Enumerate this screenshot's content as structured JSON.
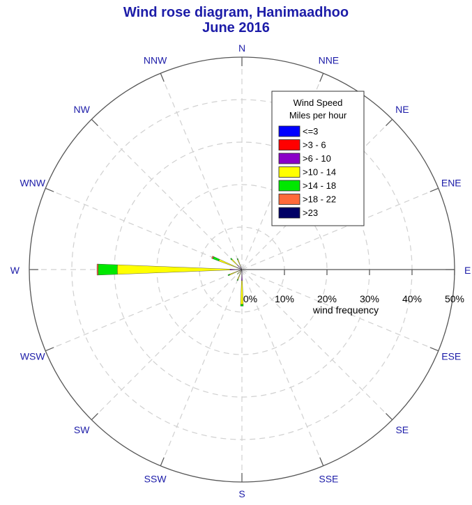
{
  "chart_data": {
    "type": "wind-rose",
    "title": "Wind rose diagram, Hanimaadhoo",
    "subtitle": "June 2016",
    "directions": [
      "N",
      "NNE",
      "NE",
      "ENE",
      "E",
      "ESE",
      "SE",
      "SSE",
      "S",
      "SSW",
      "SW",
      "WSW",
      "W",
      "WNW",
      "NW",
      "NNW"
    ],
    "radial_axis": {
      "label": "wind frequency",
      "ticks": [
        0,
        10,
        20,
        30,
        40,
        50
      ],
      "tick_labels": [
        "0%",
        "10%",
        "20%",
        "30%",
        "40%",
        "50%"
      ],
      "max": 50
    },
    "legend": {
      "title_line1": "Wind Speed",
      "title_line2": "Miles per hour",
      "position": "top-right"
    },
    "bins": [
      {
        "name": "<=3",
        "color": "#0000ff"
      },
      {
        "name": ">3 - 6",
        "color": "#ff0000"
      },
      {
        "name": ">6 - 10",
        "color": "#8a00c8"
      },
      {
        "name": ">10 - 14",
        "color": "#ffff00"
      },
      {
        "name": ">14 - 18",
        "color": "#00e800"
      },
      {
        "name": ">18 - 22",
        "color": "#ff6a3a"
      },
      {
        "name": ">23",
        "color": "#000066"
      }
    ],
    "sectors": [
      {
        "direction": "S",
        "values": [
          0,
          0,
          2.6,
          5.6,
          0.4,
          0,
          0
        ]
      },
      {
        "direction": "SSW",
        "values": [
          0,
          0,
          0.5,
          2.0,
          0.3,
          0,
          0
        ]
      },
      {
        "direction": "SW",
        "values": [
          0,
          0,
          0.3,
          1.0,
          0.2,
          0,
          0
        ]
      },
      {
        "direction": "WSW",
        "values": [
          0,
          0,
          0.5,
          2.6,
          0.4,
          0,
          0
        ]
      },
      {
        "direction": "W",
        "values": [
          0,
          0,
          2.8,
          26.5,
          4.5,
          0.3,
          0
        ]
      },
      {
        "direction": "WNW",
        "values": [
          0,
          0,
          1.1,
          4.7,
          1.5,
          0.3,
          0
        ]
      },
      {
        "direction": "NW",
        "values": [
          0,
          0,
          1.5,
          1.8,
          0.4,
          0,
          0
        ]
      },
      {
        "direction": "NNW",
        "values": [
          0,
          0,
          0.8,
          1.7,
          0.3,
          0,
          0
        ]
      }
    ]
  }
}
